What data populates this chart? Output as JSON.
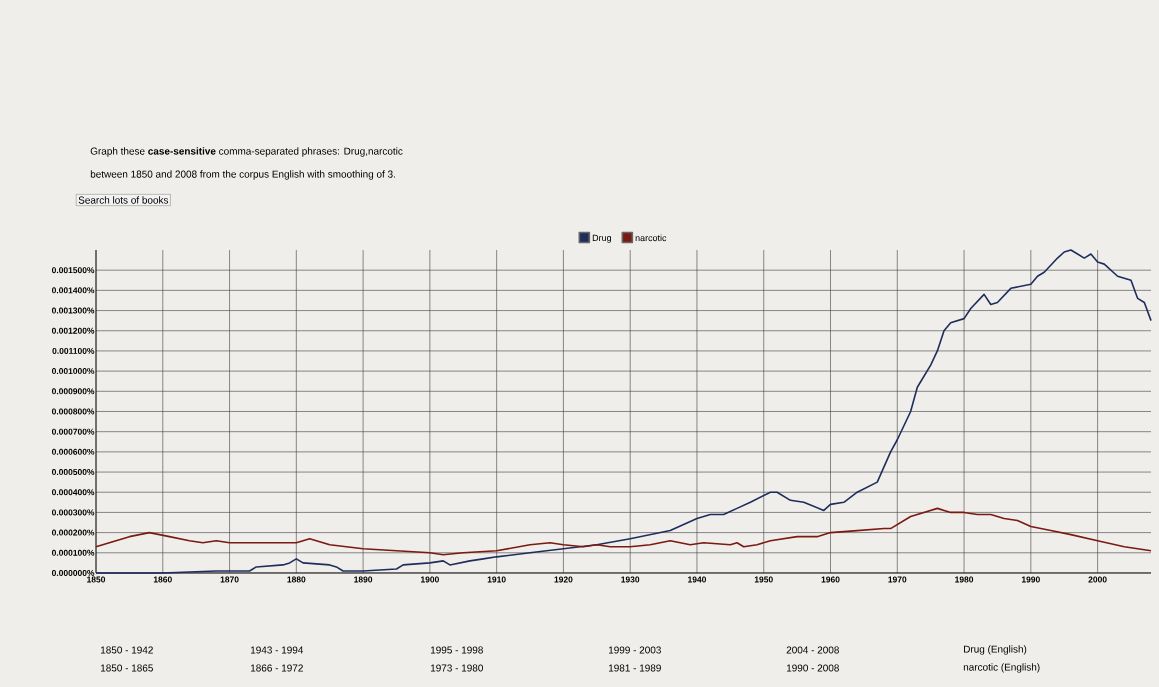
{
  "chart_data": {
    "type": "line",
    "xlim": [
      1850,
      2008
    ],
    "ylim": [
      0,
      0.0016
    ],
    "xticks": [
      1850,
      1860,
      1870,
      1880,
      1890,
      1900,
      1910,
      1920,
      1930,
      1940,
      1950,
      1960,
      1970,
      1980,
      1990,
      2000
    ],
    "yticks": [
      {
        "value": 0,
        "label": "0.000000%"
      },
      {
        "value": 0.0001,
        "label": "0.000100%"
      },
      {
        "value": 0.0002,
        "label": "0.000200%"
      },
      {
        "value": 0.0003,
        "label": "0.000300%"
      },
      {
        "value": 0.0004,
        "label": "0.000400%"
      },
      {
        "value": 0.0005,
        "label": "0.000500%"
      },
      {
        "value": 0.0006,
        "label": "0.000600%"
      },
      {
        "value": 0.0007,
        "label": "0.000700%"
      },
      {
        "value": 0.0008,
        "label": "0.000800%"
      },
      {
        "value": 0.0009,
        "label": "0.000900%"
      },
      {
        "value": 0.001,
        "label": "0.001000%"
      },
      {
        "value": 0.0011,
        "label": "0.001100%"
      },
      {
        "value": 0.0012,
        "label": "0.001200%"
      },
      {
        "value": 0.0013,
        "label": "0.001300%"
      },
      {
        "value": 0.0014,
        "label": "0.001400%"
      },
      {
        "value": 0.0015,
        "label": "0.001500%"
      }
    ],
    "grid": true,
    "legend": "top",
    "marker": "none",
    "line_style": "solid",
    "series": [
      {
        "name": "Drug",
        "color": "#1f2d5c",
        "x": [
          1850,
          1860,
          1868,
          1870,
          1873,
          1874,
          1878,
          1879,
          1880,
          1881,
          1885,
          1886,
          1887,
          1890,
          1895,
          1896,
          1900,
          1902,
          1903,
          1906,
          1908,
          1910,
          1915,
          1920,
          1925,
          1930,
          1933,
          1936,
          1940,
          1942,
          1944,
          1946,
          1948,
          1951,
          1952,
          1954,
          1956,
          1959,
          1960,
          1962,
          1964,
          1967,
          1969,
          1970,
          1972,
          1973,
          1975,
          1976,
          1977,
          1978,
          1980,
          1981,
          1983,
          1984,
          1985,
          1987,
          1990,
          1991,
          1992,
          1994,
          1995,
          1996,
          1998,
          1999,
          2000,
          2001,
          2003,
          2005,
          2006,
          2007,
          2008
        ],
        "values": [
          0,
          0,
          1e-05,
          1e-05,
          1e-05,
          3e-05,
          4e-05,
          5e-05,
          7e-05,
          5e-05,
          4e-05,
          3e-05,
          1e-05,
          1e-05,
          2e-05,
          4e-05,
          5e-05,
          6e-05,
          4e-05,
          6e-05,
          7e-05,
          8e-05,
          0.0001,
          0.00012,
          0.00014,
          0.00017,
          0.00019,
          0.00021,
          0.00027,
          0.00029,
          0.00029,
          0.00032,
          0.00035,
          0.0004,
          0.0004,
          0.00036,
          0.00035,
          0.00031,
          0.00034,
          0.00035,
          0.0004,
          0.00045,
          0.0006,
          0.00066,
          0.0008,
          0.00092,
          0.00103,
          0.0011,
          0.0012,
          0.00124,
          0.00126,
          0.00131,
          0.00138,
          0.00133,
          0.00134,
          0.00141,
          0.00143,
          0.00147,
          0.00149,
          0.00156,
          0.00159,
          0.0016,
          0.00156,
          0.00158,
          0.00154,
          0.00153,
          0.00147,
          0.00145,
          0.00136,
          0.00134,
          0.00125
        ]
      },
      {
        "name": "narcotic",
        "color": "#7a1a10",
        "x": [
          1850,
          1852,
          1855,
          1858,
          1861,
          1864,
          1866,
          1868,
          1870,
          1875,
          1880,
          1882,
          1885,
          1890,
          1895,
          1900,
          1902,
          1905,
          1910,
          1915,
          1918,
          1920,
          1923,
          1925,
          1927,
          1930,
          1933,
          1936,
          1939,
          1941,
          1945,
          1946,
          1947,
          1949,
          1951,
          1955,
          1958,
          1960,
          1964,
          1968,
          1969,
          1972,
          1974,
          1976,
          1978,
          1980,
          1982,
          1984,
          1986,
          1988,
          1990,
          1993,
          1996,
          2000,
          2004,
          2008
        ],
        "values": [
          0.00013,
          0.00015,
          0.00018,
          0.0002,
          0.00018,
          0.00016,
          0.00015,
          0.00016,
          0.00015,
          0.00015,
          0.00015,
          0.00017,
          0.00014,
          0.00012,
          0.00011,
          0.0001,
          9e-05,
          0.0001,
          0.00011,
          0.00014,
          0.00015,
          0.00014,
          0.00013,
          0.00014,
          0.00013,
          0.00013,
          0.00014,
          0.00016,
          0.00014,
          0.00015,
          0.00014,
          0.00015,
          0.00013,
          0.00014,
          0.00016,
          0.00018,
          0.00018,
          0.0002,
          0.00021,
          0.00022,
          0.00022,
          0.00028,
          0.0003,
          0.00032,
          0.0003,
          0.0003,
          0.00029,
          0.00029,
          0.00027,
          0.00026,
          0.00023,
          0.00021,
          0.00019,
          0.00016,
          0.00013,
          0.00011
        ]
      }
    ],
    "annotations": [
      "Graph these **case-sensitive** comma-separated phrases: Drug,narcotic",
      "between 1850 and 2008 from the corpus English with smoothing of 3.",
      "Search lots of books",
      "1850 - 1942",
      "1943 - 1994",
      "1995 - 1998",
      "1999 - 2003",
      "2004 - 2008",
      "Drug (English)",
      "1850 - 1865",
      "1866 - 1972",
      "1973 - 1980",
      "1981 - 1989",
      "1990 - 2008",
      "narcotic (English)"
    ]
  }
}
